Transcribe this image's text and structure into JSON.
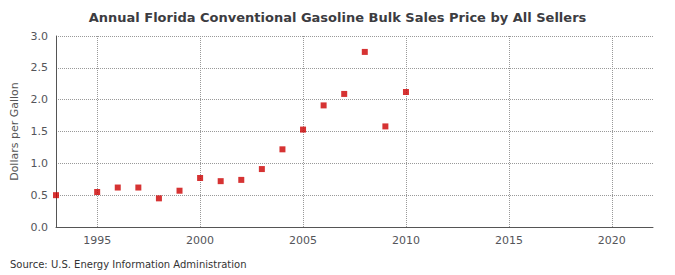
{
  "chart_data": {
    "type": "scatter",
    "title": "Annual Florida Conventional Gasoline Bulk Sales Price by All Sellers",
    "ylabel": "Dollars per Gallon",
    "annotation": "Source: U.S. Energy Information Administration",
    "x": [
      1993,
      1995,
      1996,
      1997,
      1998,
      1999,
      2000,
      2001,
      2002,
      2003,
      2004,
      2005,
      2006,
      2007,
      2008,
      2009,
      2010
    ],
    "values": [
      0.5,
      0.55,
      0.62,
      0.62,
      0.45,
      0.57,
      0.77,
      0.72,
      0.74,
      0.91,
      1.22,
      1.53,
      1.91,
      2.09,
      2.75,
      1.58,
      2.12
    ],
    "color": "#cc0000",
    "marker": "square",
    "xlim": [
      1993,
      2022
    ],
    "xticks": [
      1995,
      2000,
      2005,
      2010,
      2015,
      2020
    ],
    "ylim": [
      0.0,
      3.0
    ],
    "yticks": [
      {
        "value": 0.0,
        "label": "0.0"
      },
      0.5,
      {
        "value": 1.0,
        "label": "1.0"
      },
      1.5,
      {
        "value": 2.0,
        "label": "2.0"
      },
      2.5,
      {
        "value": 3.0,
        "label": "3.0"
      }
    ],
    "grid": true
  }
}
